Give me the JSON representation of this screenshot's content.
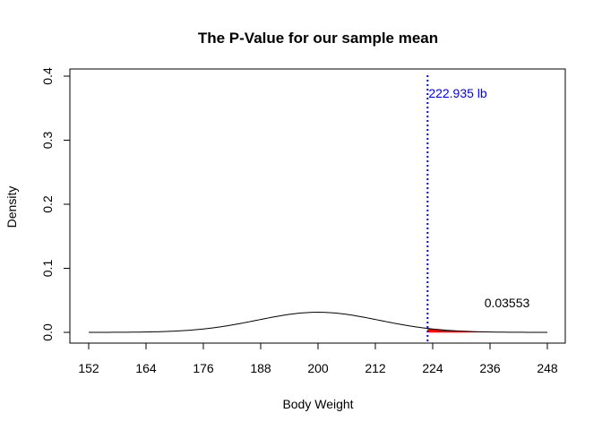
{
  "chart_data": {
    "type": "line",
    "title": "The P-Value for our sample mean",
    "xlabel": "Body Weight",
    "ylabel": "Density",
    "xlim": [
      152,
      248
    ],
    "ylim": [
      0,
      0.4
    ],
    "x_ticks": [
      "152",
      "164",
      "176",
      "188",
      "200",
      "212",
      "224",
      "236",
      "248"
    ],
    "y_ticks": [
      "0.0",
      "0.1",
      "0.2",
      "0.3",
      "0.4"
    ],
    "grid": false,
    "legend": "none",
    "curve": {
      "distribution": "normal",
      "mean": 200,
      "sd": 12.7,
      "x_range": [
        152,
        248
      ]
    },
    "shaded_tail": {
      "from_x": 222.935,
      "to_x": 248,
      "color": "#ff0000",
      "label": "0.03553"
    },
    "vline": {
      "x": 222.935,
      "color": "#0000ff",
      "style": "dotted",
      "label": "222.935 lb"
    },
    "colors": {
      "curve": "#000000",
      "tail": "#ff0000",
      "vline": "#0000ff"
    }
  }
}
